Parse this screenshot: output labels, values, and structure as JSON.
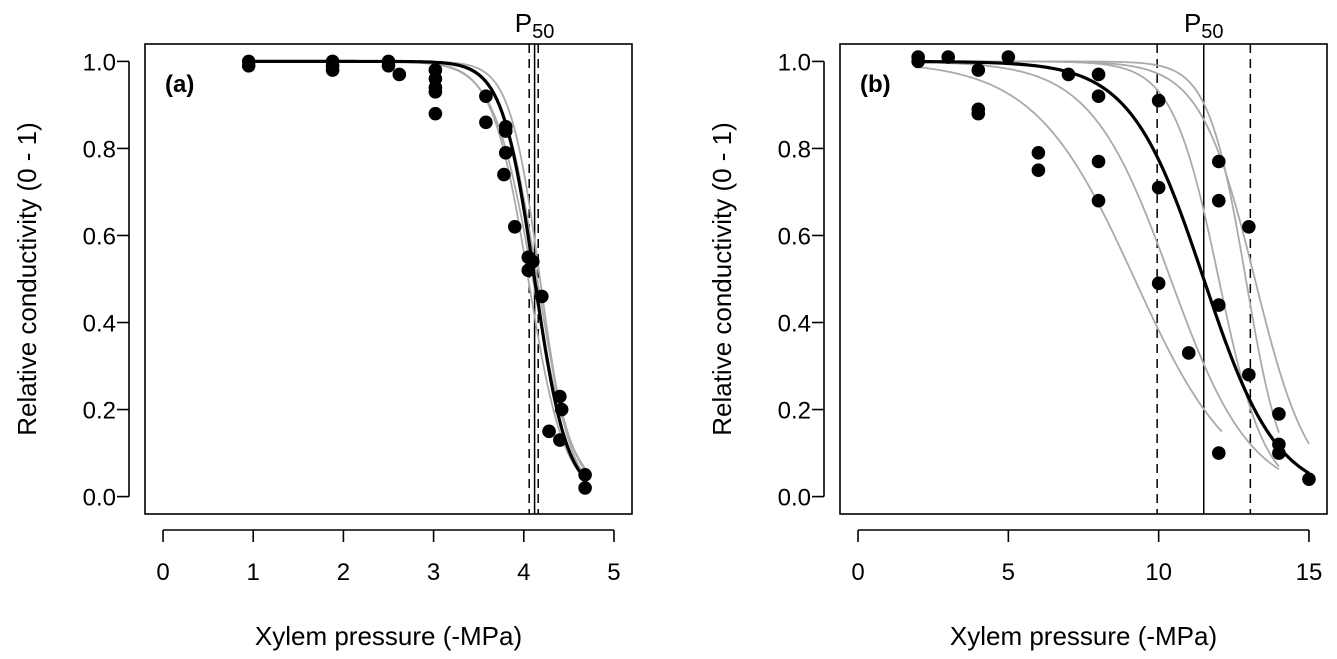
{
  "chart_data": [
    {
      "type": "scatter",
      "panel_label": "(a)",
      "xlabel": "Xylem pressure (-MPa)",
      "ylabel": "Relative conductivity (0 - 1)",
      "xlim": [
        -0.2,
        5.2
      ],
      "ylim": [
        -0.04,
        1.04
      ],
      "xticks": [
        0,
        1,
        2,
        3,
        4,
        5
      ],
      "yticks": [
        0.0,
        0.2,
        0.4,
        0.6,
        0.8,
        1.0
      ],
      "marker_label": {
        "main": "P",
        "sub": "50"
      },
      "p50": 4.12,
      "p50_ci": [
        4.06,
        4.16
      ],
      "fit_colors": {
        "main": "#000000",
        "individual": "#aaaaaa"
      },
      "main_fit": {
        "p50": 4.12,
        "slope": 5.6
      },
      "individual_fits": [
        {
          "p50": 4.05,
          "slope": 5.0
        },
        {
          "p50": 4.15,
          "slope": 5.2
        },
        {
          "p50": 4.1,
          "slope": 4.6
        },
        {
          "p50": 4.18,
          "slope": 6.0
        }
      ],
      "fit_range": [
        0.95,
        4.7
      ],
      "points": [
        [
          0.95,
          1.0
        ],
        [
          0.95,
          0.99
        ],
        [
          1.88,
          1.0
        ],
        [
          1.88,
          0.99
        ],
        [
          1.88,
          0.98
        ],
        [
          2.5,
          1.0
        ],
        [
          2.5,
          0.99
        ],
        [
          2.62,
          0.97
        ],
        [
          3.02,
          0.98
        ],
        [
          3.02,
          0.96
        ],
        [
          3.02,
          0.94
        ],
        [
          3.02,
          0.93
        ],
        [
          3.02,
          0.88
        ],
        [
          3.58,
          0.92
        ],
        [
          3.58,
          0.86
        ],
        [
          3.8,
          0.85
        ],
        [
          3.8,
          0.84
        ],
        [
          3.8,
          0.79
        ],
        [
          3.78,
          0.74
        ],
        [
          3.9,
          0.62
        ],
        [
          4.05,
          0.55
        ],
        [
          4.05,
          0.52
        ],
        [
          4.1,
          0.54
        ],
        [
          4.2,
          0.46
        ],
        [
          4.28,
          0.15
        ],
        [
          4.4,
          0.23
        ],
        [
          4.42,
          0.2
        ],
        [
          4.4,
          0.13
        ],
        [
          4.68,
          0.05
        ],
        [
          4.68,
          0.02
        ]
      ]
    },
    {
      "type": "scatter",
      "panel_label": "(b)",
      "xlabel": "Xylem pressure (-MPa)",
      "ylabel": "Relative conductivity (0 - 1)",
      "xlim": [
        -0.6,
        15.6
      ],
      "ylim": [
        -0.04,
        1.04
      ],
      "xticks": [
        0,
        5,
        10,
        15
      ],
      "yticks": [
        0.0,
        0.2,
        0.4,
        0.6,
        0.8,
        1.0
      ],
      "marker_label": {
        "main": "P",
        "sub": "50"
      },
      "p50": 11.5,
      "p50_ci": [
        9.95,
        13.05
      ],
      "fit_colors": {
        "main": "#000000",
        "individual": "#aaaaaa"
      },
      "main_fit": {
        "p50": 11.5,
        "slope": 0.82,
        "range": [
          2,
          15
        ]
      },
      "individual_fits": [
        {
          "p50": 9.2,
          "slope": 0.6,
          "range": [
            2,
            12.1
          ]
        },
        {
          "p50": 10.4,
          "slope": 0.75,
          "range": [
            2,
            14
          ]
        },
        {
          "p50": 12.0,
          "slope": 1.3,
          "range": [
            2,
            14
          ]
        },
        {
          "p50": 12.9,
          "slope": 1.6,
          "range": [
            2,
            14
          ]
        },
        {
          "p50": 13.2,
          "slope": 1.1,
          "range": [
            2,
            15
          ]
        }
      ],
      "points": [
        [
          2,
          1.01
        ],
        [
          2,
          1.0
        ],
        [
          3,
          1.01
        ],
        [
          4,
          0.98
        ],
        [
          4,
          0.89
        ],
        [
          4,
          0.88
        ],
        [
          5,
          1.01
        ],
        [
          6,
          0.79
        ],
        [
          6,
          0.75
        ],
        [
          7,
          0.97
        ],
        [
          8,
          0.97
        ],
        [
          8,
          0.92
        ],
        [
          8,
          0.77
        ],
        [
          8,
          0.68
        ],
        [
          10,
          0.91
        ],
        [
          10,
          0.71
        ],
        [
          10,
          0.49
        ],
        [
          11,
          0.33
        ],
        [
          12,
          0.77
        ],
        [
          12,
          0.68
        ],
        [
          12,
          0.44
        ],
        [
          12,
          0.1
        ],
        [
          13,
          0.62
        ],
        [
          13,
          0.28
        ],
        [
          14,
          0.19
        ],
        [
          14,
          0.12
        ],
        [
          14,
          0.1
        ],
        [
          15,
          0.04
        ]
      ]
    }
  ]
}
